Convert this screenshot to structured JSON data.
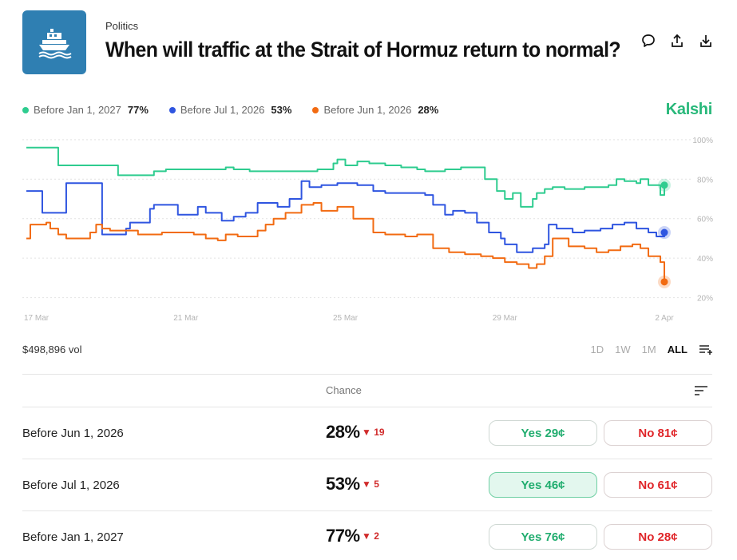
{
  "header": {
    "icon": "ship-icon",
    "category": "Politics",
    "title": "When will traffic at the Strait of Hormuz return to normal?",
    "actions": [
      "comment-icon",
      "share-icon",
      "download-icon"
    ]
  },
  "brand": "Kalshi",
  "legend": [
    {
      "label": "Before Jan 1, 2027",
      "pct": "77%",
      "color": "#2ecc8f"
    },
    {
      "label": "Before Jul 1, 2026",
      "pct": "53%",
      "color": "#2f55e0"
    },
    {
      "label": "Before Jun 1, 2026",
      "pct": "28%",
      "color": "#f26b12"
    }
  ],
  "volume": "$498,896 vol",
  "ranges": [
    {
      "label": "1D",
      "active": false
    },
    {
      "label": "1W",
      "active": false
    },
    {
      "label": "1M",
      "active": false
    },
    {
      "label": "ALL",
      "active": true
    }
  ],
  "table": {
    "column_header": "Chance",
    "rows": [
      {
        "label": "Before Jun 1, 2026",
        "chance": "28%",
        "change": "▼ 19",
        "yes": "Yes 29¢",
        "no": "No 81¢",
        "yes_active": false
      },
      {
        "label": "Before Jul 1, 2026",
        "chance": "53%",
        "change": "▼ 5",
        "yes": "Yes 46¢",
        "no": "No 61¢",
        "yes_active": true
      },
      {
        "label": "Before Jan 1, 2027",
        "chance": "77%",
        "change": "▼ 2",
        "yes": "Yes 76¢",
        "no": "No 28¢",
        "yes_active": false
      }
    ]
  },
  "chart_data": {
    "type": "line",
    "x_ticks": [
      "17 Mar",
      "21 Mar",
      "25 Mar",
      "29 Mar",
      "2 Apr"
    ],
    "x_tick_days": [
      0,
      4,
      8,
      12,
      16
    ],
    "y_ticks": [
      "100%",
      "80%",
      "60%",
      "40%",
      "20%"
    ],
    "y_tick_values": [
      100,
      80,
      60,
      40,
      20
    ],
    "ylim": [
      17,
      104
    ],
    "xlim": [
      0,
      16.2
    ],
    "grid": true,
    "series": [
      {
        "name": "Before Jan 1, 2027",
        "color": "#2ecc8f",
        "x": [
          0,
          0.3,
          0.7,
          0.8,
          1.6,
          1.9,
          2.2,
          2.3,
          2.5,
          2.8,
          3.2,
          3.5,
          4,
          4.5,
          5,
          5.2,
          5.6,
          6,
          6.4,
          6.8,
          7,
          7.3,
          7.7,
          7.8,
          8,
          8.3,
          8.6,
          8.8,
          9,
          9.4,
          9.8,
          10,
          10.5,
          10.9,
          11,
          11.4,
          11.5,
          11.8,
          12,
          12.2,
          12.4,
          12.7,
          12.8,
          13,
          13.2,
          13.5,
          13.8,
          14,
          14.3,
          14.6,
          14.8,
          15,
          15.3,
          15.4,
          15.6,
          15.9,
          16
        ],
        "y": [
          96,
          96,
          96,
          87,
          87,
          87,
          87,
          82,
          82,
          82,
          84,
          85,
          85,
          85,
          86,
          85,
          84,
          84,
          84,
          84,
          84,
          85,
          88,
          90,
          87,
          89,
          88,
          88,
          87,
          86,
          85,
          84,
          85,
          86,
          86,
          86,
          80,
          74,
          70,
          73,
          66,
          70,
          73,
          75,
          76,
          75,
          75,
          76,
          76,
          77,
          80,
          79,
          78,
          80,
          77,
          72,
          77
        ]
      },
      {
        "name": "Before Jul 1, 2026",
        "color": "#2f55e0",
        "x": [
          0,
          0.35,
          0.4,
          0.7,
          0.9,
          1.0,
          1.8,
          1.9,
          2.2,
          2.5,
          2.6,
          3.1,
          3.2,
          3.7,
          3.8,
          4.3,
          4.5,
          4.9,
          5.2,
          5.5,
          5.8,
          6,
          6.3,
          6.6,
          6.9,
          7.1,
          7.4,
          7.8,
          8,
          8.3,
          8.7,
          9,
          9.5,
          10,
          10.2,
          10.5,
          10.7,
          11,
          11.3,
          11.6,
          11.9,
          12,
          12.3,
          12.7,
          13,
          13.1,
          13.3,
          13.5,
          13.7,
          14,
          14.4,
          14.7,
          15,
          15.3,
          15.6,
          15.8,
          16
        ],
        "y": [
          74,
          74,
          63,
          63,
          63,
          78,
          78,
          52,
          52,
          55,
          58,
          65,
          67,
          67,
          62,
          66,
          63,
          59,
          61,
          63,
          68,
          68,
          66,
          70,
          79,
          76,
          77,
          78,
          78,
          77,
          74,
          73,
          73,
          72,
          67,
          62,
          64,
          63,
          58,
          53,
          50,
          47,
          43,
          45,
          47,
          57,
          55,
          55,
          53,
          54,
          55,
          57,
          58,
          55,
          53,
          51,
          53
        ]
      },
      {
        "name": "Before Jun 1, 2026",
        "color": "#f26b12",
        "x": [
          0,
          0.1,
          0.5,
          0.6,
          0.8,
          1.0,
          1.3,
          1.6,
          1.75,
          1.9,
          2.1,
          2.4,
          2.8,
          3.1,
          3.4,
          3.9,
          4.2,
          4.5,
          4.8,
          5.0,
          5.3,
          5.8,
          6.0,
          6.2,
          6.5,
          6.9,
          7.2,
          7.4,
          7.8,
          8.0,
          8.2,
          8.7,
          9,
          9.5,
          9.8,
          10,
          10.2,
          10.6,
          11,
          11.4,
          11.7,
          12,
          12.3,
          12.6,
          12.8,
          13.0,
          13.2,
          13.6,
          14,
          14.3,
          14.6,
          14.9,
          15.2,
          15.4,
          15.6,
          15.9,
          16
        ],
        "y": [
          50,
          57,
          58,
          55,
          52,
          50,
          50,
          53,
          57,
          55,
          54,
          54,
          52,
          52,
          53,
          53,
          52,
          50,
          49,
          52,
          51,
          54,
          57,
          60,
          63,
          67,
          68,
          64,
          66,
          66,
          60,
          53,
          52,
          51,
          52,
          52,
          45,
          43,
          42,
          41,
          40,
          38,
          37,
          35,
          37,
          41,
          50,
          46,
          45,
          43,
          44,
          46,
          47,
          45,
          41,
          38,
          28
        ]
      }
    ]
  }
}
